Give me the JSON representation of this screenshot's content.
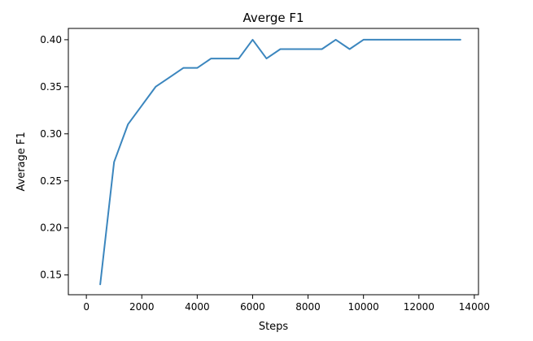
{
  "chart_data": {
    "type": "line",
    "title": "Averge F1",
    "xlabel": "Steps",
    "ylabel": "Average F1",
    "xlim": [
      -650,
      14150
    ],
    "ylim": [
      0.129,
      0.412
    ],
    "xticks": [
      0,
      2000,
      4000,
      6000,
      8000,
      10000,
      12000,
      14000
    ],
    "yticks": [
      0.15,
      0.2,
      0.25,
      0.3,
      0.35,
      0.4
    ],
    "ytick_labels": [
      "0.15",
      "0.20",
      "0.25",
      "0.30",
      "0.35",
      "0.40"
    ],
    "grid": false,
    "legend": "none",
    "series": [
      {
        "color": "#3b86be",
        "x": [
          500,
          1000,
          1500,
          2000,
          2500,
          3000,
          3500,
          4000,
          4500,
          5000,
          5500,
          6000,
          6500,
          7000,
          7500,
          8000,
          8500,
          9000,
          9500,
          10000,
          10500,
          11000,
          11500,
          12000,
          12500,
          13000,
          13500
        ],
        "y": [
          0.14,
          0.27,
          0.31,
          0.33,
          0.35,
          0.36,
          0.37,
          0.37,
          0.38,
          0.38,
          0.38,
          0.4,
          0.38,
          0.39,
          0.39,
          0.39,
          0.39,
          0.4,
          0.39,
          0.4,
          0.4,
          0.4,
          0.4,
          0.4,
          0.4,
          0.4,
          0.4
        ]
      }
    ]
  }
}
